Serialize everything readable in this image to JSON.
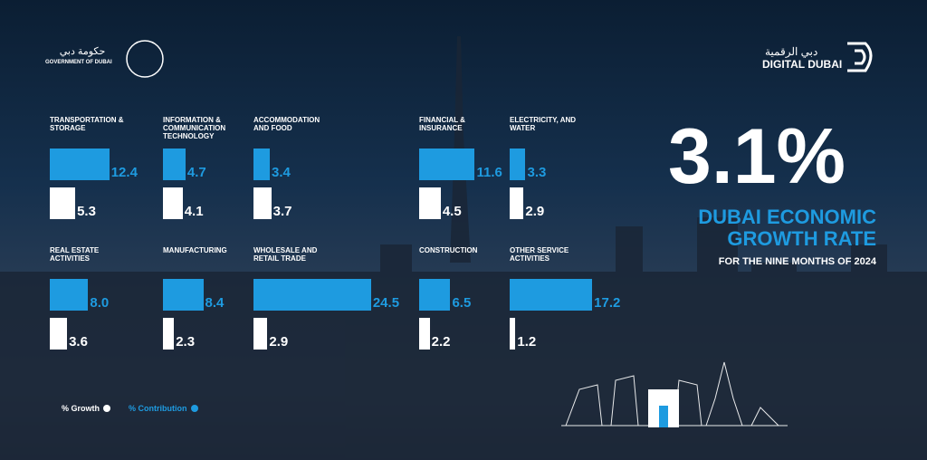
{
  "header": {
    "gov_arabic": "حكومة دبي",
    "gov_english": "GOVERNMENT OF DUBAI",
    "digital_arabic": "دبي الرقمية",
    "digital_english": "DIGITAL DUBAI"
  },
  "headline": {
    "value": "3.1%",
    "title": "DUBAI ECONOMIC GROWTH RATE",
    "subtitle": "FOR THE NINE MONTHS OF 2024"
  },
  "chart_data": {
    "type": "bar",
    "categories": [
      "TRANSPORTATION & STORAGE",
      "INFORMATION & COMMUNICATION TECHNOLOGY",
      "ACCOMMODATION AND FOOD",
      "FINANCIAL & INSURANCE",
      "ELECTRICITY, AND WATER",
      "REAL ESTATE ACTIVITIES",
      "MANUFACTURING",
      "WHOLESALE AND RETAIL TRADE",
      "CONSTRUCTION",
      "OTHER SERVICE ACTIVITIES"
    ],
    "series": [
      {
        "name": "% Contribution",
        "color": "#1e9be0",
        "values": [
          12.4,
          4.7,
          3.4,
          11.6,
          3.3,
          8.0,
          8.4,
          24.5,
          6.5,
          17.2
        ],
        "value_labels": [
          "12.4",
          "4.7",
          "3.4",
          "11.6",
          "3.3",
          "8.0",
          "8.4",
          "24.5",
          "6.5",
          "17.2"
        ]
      },
      {
        "name": "% Growth",
        "color": "#ffffff",
        "values": [
          5.3,
          4.1,
          3.7,
          4.5,
          2.9,
          3.6,
          2.3,
          2.9,
          2.2,
          1.2
        ]
      }
    ]
  }
}
